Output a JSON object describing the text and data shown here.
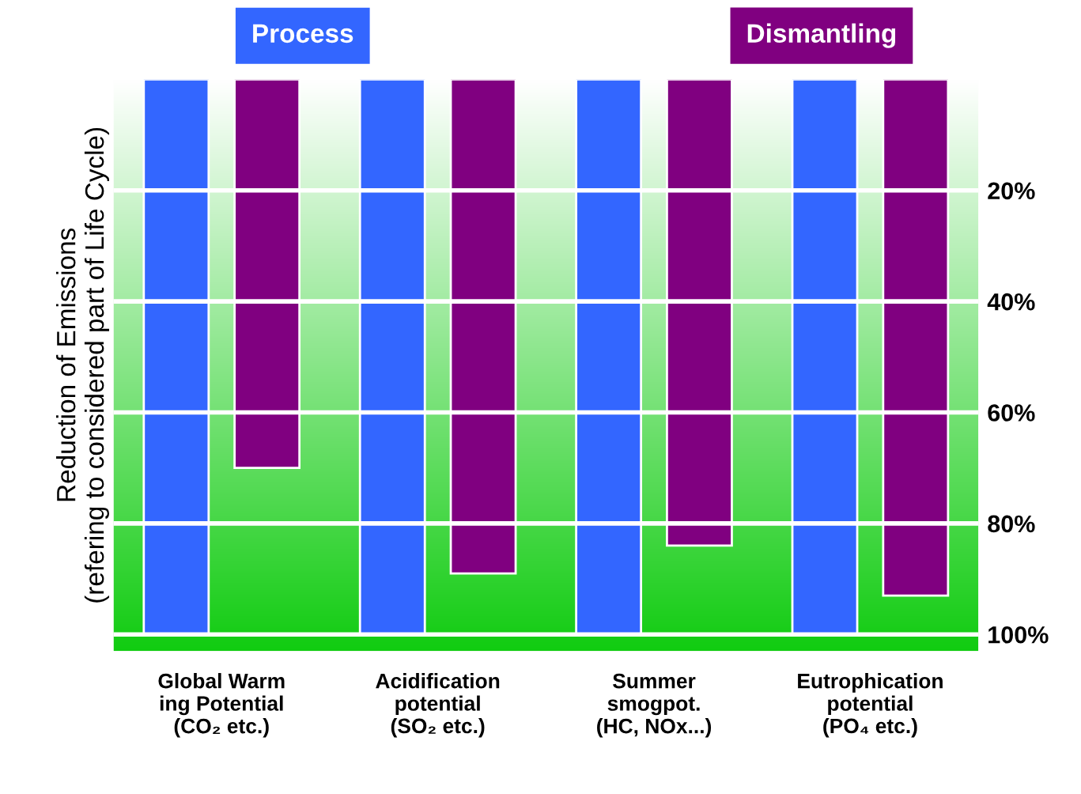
{
  "chart_data": {
    "type": "bar",
    "categories": [
      "Global Warm\ning Potential\n(CO₂ etc.)",
      "Acidification\npotential\n(SO₂ etc.)",
      "Summer\nsmogpot.\n(HC, NOx...)",
      "Eutrophication\npotential\n(PO₄ etc.)"
    ],
    "series": [
      {
        "name": "Process",
        "color": "#3366ff",
        "values": [
          100,
          100,
          100,
          100
        ]
      },
      {
        "name": "Dismantling",
        "color": "#800080",
        "values": [
          70,
          89,
          84,
          93
        ]
      }
    ],
    "ylabel": "Reduction of Emissions\n(refering to considered part of Life Cycle)",
    "ylim": [
      103,
      0
    ],
    "yticks": [
      {
        "value": 20,
        "label": "20%"
      },
      {
        "value": 40,
        "label": "40%"
      },
      {
        "value": 60,
        "label": "60%"
      },
      {
        "value": 80,
        "label": "80%"
      },
      {
        "value": 100,
        "label": "100%"
      }
    ],
    "grid": "y",
    "legend": "top"
  }
}
